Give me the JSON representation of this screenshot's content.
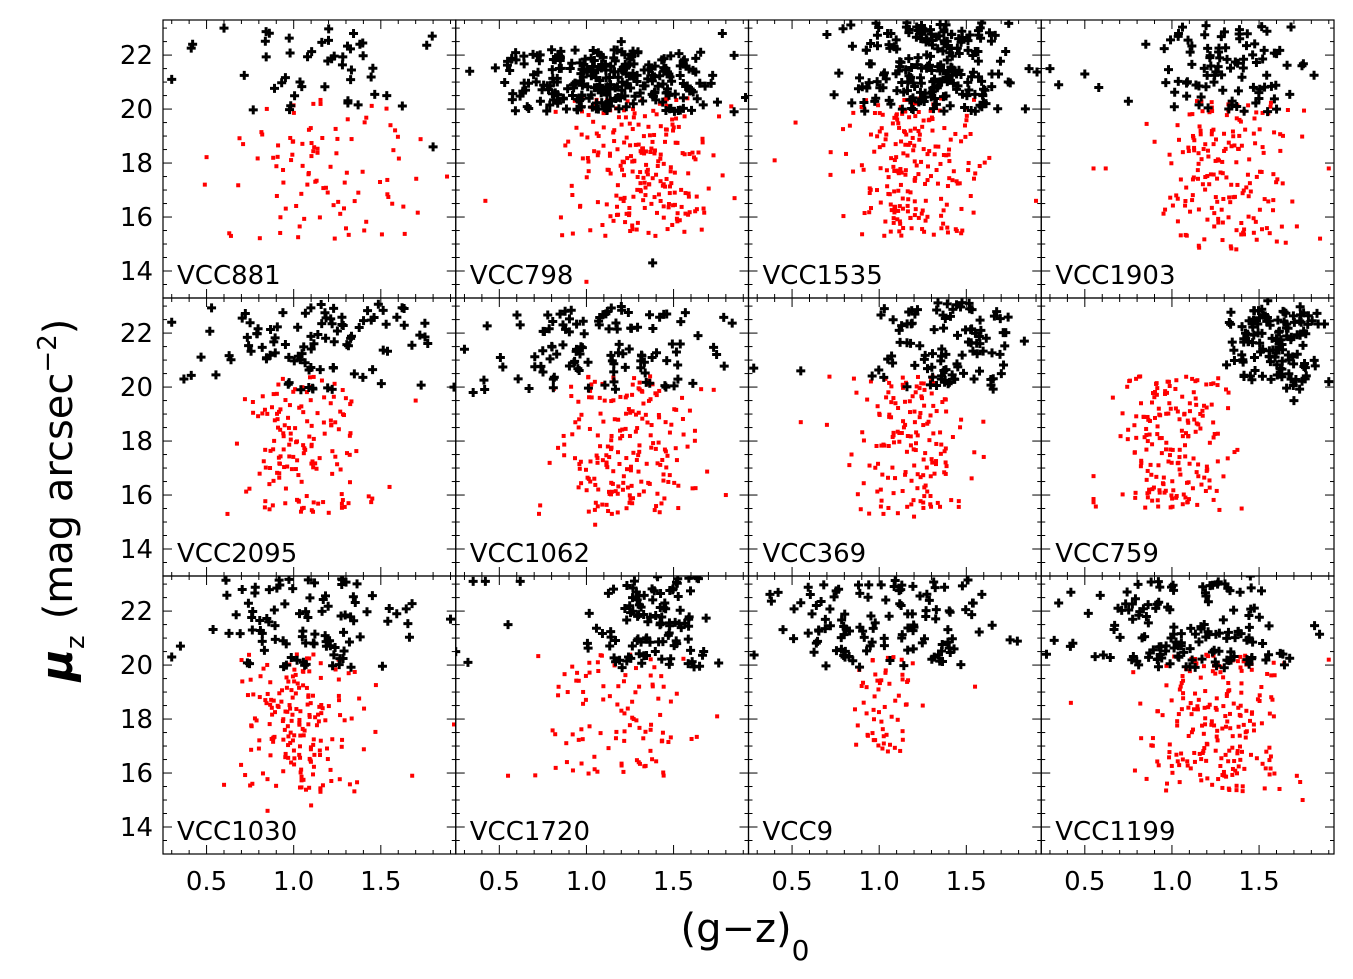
{
  "chart_data": {
    "type": "scatter",
    "title": "",
    "xlabel_main": "(g",
    "xlabel_dash": "−",
    "xlabel_z": "z)",
    "xlabel_sub": "0",
    "ylabel_mu": "μ",
    "ylabel_sub": "z",
    "ylabel_unit": "(mag arcsec",
    "ylabel_exp": "−2",
    "ylabel_close": ")",
    "xlim": [
      0.25,
      1.93
    ],
    "ylim": [
      13,
      23.3
    ],
    "xticks": [
      0.5,
      1.0,
      1.5
    ],
    "xtick_labels": [
      "0.5",
      "1.0",
      "1.5"
    ],
    "yticks": [
      14,
      16,
      18,
      20,
      22
    ],
    "ytick_labels": [
      "14",
      "16",
      "18",
      "20",
      "22"
    ],
    "series_styles": {
      "black": {
        "marker": "plus",
        "color": "#000000"
      },
      "red": {
        "marker": "dot",
        "color": "#ff0000"
      }
    },
    "panels": [
      {
        "label": "VCC881",
        "seed": 11,
        "black": {
          "n": 45,
          "x": [
            0.28,
            1.85
          ],
          "y": [
            19.9,
            23.0
          ],
          "points": [
            [
              0.3,
              21.1
            ],
            [
              0.42,
              22.4
            ],
            [
              0.6,
              23.0
            ],
            [
              1.38,
              22.4
            ],
            [
              1.8,
              18.6
            ]
          ]
        },
        "red": {
          "n": 95,
          "x": [
            0.5,
            1.85
          ],
          "y": [
            15.2,
            20.4
          ],
          "points": [
            [
              0.49,
              17.2
            ],
            [
              1.88,
              17.5
            ],
            [
              0.64,
              15.3
            ]
          ]
        }
      },
      {
        "label": "VCC798",
        "seed": 22,
        "black": {
          "n": 260,
          "x": [
            0.4,
            1.92
          ],
          "y": [
            19.9,
            22.2
          ],
          "points": [
            [
              0.33,
              21.4
            ],
            [
              0.8,
              22.2
            ],
            [
              1.2,
              22.5
            ],
            [
              1.78,
              22.8
            ],
            [
              1.38,
              14.3
            ]
          ]
        },
        "red": {
          "n": 230,
          "x": [
            0.75,
            1.9
          ],
          "y": [
            15.3,
            20.4
          ],
          "points": [
            [
              0.42,
              16.6
            ],
            [
              1.0,
              13.6
            ],
            [
              1.85,
              16.7
            ]
          ]
        }
      },
      {
        "label": "VCC1535",
        "seed": 33,
        "black": {
          "n": 210,
          "x": [
            0.7,
            1.92
          ],
          "y": [
            19.9,
            23.2
          ],
          "points": [
            [
              0.98,
              20.4
            ],
            [
              1.86,
              21.5
            ]
          ]
        },
        "red": {
          "n": 210,
          "x": [
            0.7,
            1.7
          ],
          "y": [
            15.3,
            20.4
          ],
          "points": [
            [
              0.4,
              18.1
            ],
            [
              0.52,
              19.5
            ],
            [
              1.9,
              16.6
            ]
          ]
        }
      },
      {
        "label": "VCC1903",
        "seed": 44,
        "black": {
          "n": 90,
          "x": [
            0.75,
            1.9
          ],
          "y": [
            19.9,
            23.2
          ],
          "points": [
            [
              0.3,
              21.5
            ],
            [
              0.35,
              20.9
            ],
            [
              0.5,
              21.3
            ],
            [
              0.58,
              20.8
            ],
            [
              0.85,
              22.4
            ]
          ]
        },
        "red": {
          "n": 180,
          "x": [
            0.8,
            1.8
          ],
          "y": [
            14.8,
            20.3
          ],
          "points": [
            [
              0.55,
              17.8
            ],
            [
              0.62,
              17.8
            ],
            [
              1.85,
              15.2
            ],
            [
              1.9,
              17.8
            ]
          ]
        }
      },
      {
        "label": "VCC2095",
        "seed": 55,
        "black": {
          "n": 95,
          "x": [
            0.28,
            1.92
          ],
          "y": [
            19.9,
            23.1
          ],
          "points": [
            [
              0.3,
              22.4
            ],
            [
              0.37,
              20.3
            ],
            [
              1.92,
              20.0
            ]
          ]
        },
        "red": {
          "n": 150,
          "x": [
            0.62,
            1.5
          ],
          "y": [
            15.3,
            20.4
          ],
          "points": [
            [
              0.62,
              15.3
            ],
            [
              1.55,
              16.3
            ],
            [
              1.7,
              19.5
            ]
          ]
        }
      },
      {
        "label": "VCC1062",
        "seed": 66,
        "black": {
          "n": 110,
          "x": [
            0.28,
            1.92
          ],
          "y": [
            19.9,
            23.0
          ],
          "points": [
            [
              0.35,
              19.8
            ],
            [
              0.3,
              21.4
            ]
          ]
        },
        "red": {
          "n": 200,
          "x": [
            0.7,
            1.8
          ],
          "y": [
            15.3,
            20.4
          ],
          "points": [
            [
              1.05,
              14.9
            ],
            [
              1.8,
              16.0
            ]
          ]
        }
      },
      {
        "label": "VCC369",
        "seed": 77,
        "black": {
          "n": 100,
          "x": [
            0.9,
            1.92
          ],
          "y": [
            19.9,
            23.2
          ],
          "points": [
            [
              0.28,
              20.7
            ],
            [
              0.55,
              20.6
            ]
          ]
        },
        "red": {
          "n": 160,
          "x": [
            0.7,
            1.6
          ],
          "y": [
            15.3,
            20.4
          ],
          "points": [
            [
              0.55,
              18.7
            ],
            [
              0.7,
              18.6
            ],
            [
              1.2,
              15.2
            ]
          ]
        }
      },
      {
        "label": "VCC759",
        "seed": 88,
        "black": {
          "n": 120,
          "x": [
            1.25,
            1.92
          ],
          "y": [
            19.9,
            23.0
          ],
          "points": [
            [
              1.55,
              23.2
            ],
            [
              1.7,
              19.5
            ],
            [
              1.9,
              20.2
            ]
          ]
        },
        "red": {
          "n": 190,
          "x": [
            0.55,
            1.45
          ],
          "y": [
            15.4,
            20.4
          ],
          "points": [
            [
              0.55,
              16.7
            ],
            [
              1.4,
              15.5
            ]
          ]
        }
      },
      {
        "label": "VCC1030",
        "seed": 99,
        "black": {
          "n": 95,
          "x": [
            0.28,
            1.85
          ],
          "y": [
            19.9,
            23.2
          ],
          "points": [
            [
              0.3,
              20.3
            ],
            [
              0.35,
              20.7
            ],
            [
              1.9,
              21.7
            ]
          ]
        },
        "red": {
          "n": 180,
          "x": [
            0.55,
            1.55
          ],
          "y": [
            15.3,
            20.4
          ],
          "points": [
            [
              0.85,
              14.6
            ],
            [
              1.1,
              14.8
            ],
            [
              1.68,
              15.9
            ],
            [
              1.92,
              17.8
            ]
          ]
        }
      },
      {
        "label": "VCC1720",
        "seed": 111,
        "black": {
          "n": 105,
          "x": [
            0.9,
            1.92
          ],
          "y": [
            19.9,
            23.3
          ],
          "points": [
            [
              0.25,
              20.5
            ],
            [
              0.32,
              20.1
            ],
            [
              0.35,
              23.1
            ],
            [
              0.42,
              23.1
            ],
            [
              0.55,
              21.5
            ],
            [
              0.62,
              23.1
            ]
          ]
        },
        "red": {
          "n": 100,
          "x": [
            0.65,
            1.75
          ],
          "y": [
            15.9,
            20.4
          ],
          "points": [
            [
              0.55,
              15.9
            ],
            [
              1.3,
              16.4
            ],
            [
              1.75,
              18.1
            ]
          ]
        }
      },
      {
        "label": "VCC9",
        "seed": 122,
        "black": {
          "n": 120,
          "x": [
            0.25,
            1.92
          ],
          "y": [
            19.9,
            23.2
          ],
          "points": []
        },
        "red": {
          "n": 55,
          "x": [
            0.8,
            1.25
          ],
          "y": [
            16.8,
            20.3
          ],
          "points": [
            [
              1.55,
              19.2
            ],
            [
              1.05,
              16.8
            ],
            [
              1.25,
              18.5
            ]
          ]
        }
      },
      {
        "label": "VCC1199",
        "seed": 133,
        "black": {
          "n": 140,
          "x": [
            0.28,
            1.92
          ],
          "y": [
            19.9,
            23.1
          ],
          "points": [
            [
              0.28,
              20.4
            ],
            [
              0.35,
              22.3
            ],
            [
              0.42,
              22.7
            ],
            [
              1.45,
              23.3
            ]
          ]
        },
        "red": {
          "n": 210,
          "x": [
            0.75,
            1.8
          ],
          "y": [
            15.3,
            20.4
          ],
          "points": [
            [
              0.42,
              18.6
            ],
            [
              1.75,
              15.0
            ],
            [
              1.9,
              20.2
            ]
          ]
        }
      }
    ]
  }
}
